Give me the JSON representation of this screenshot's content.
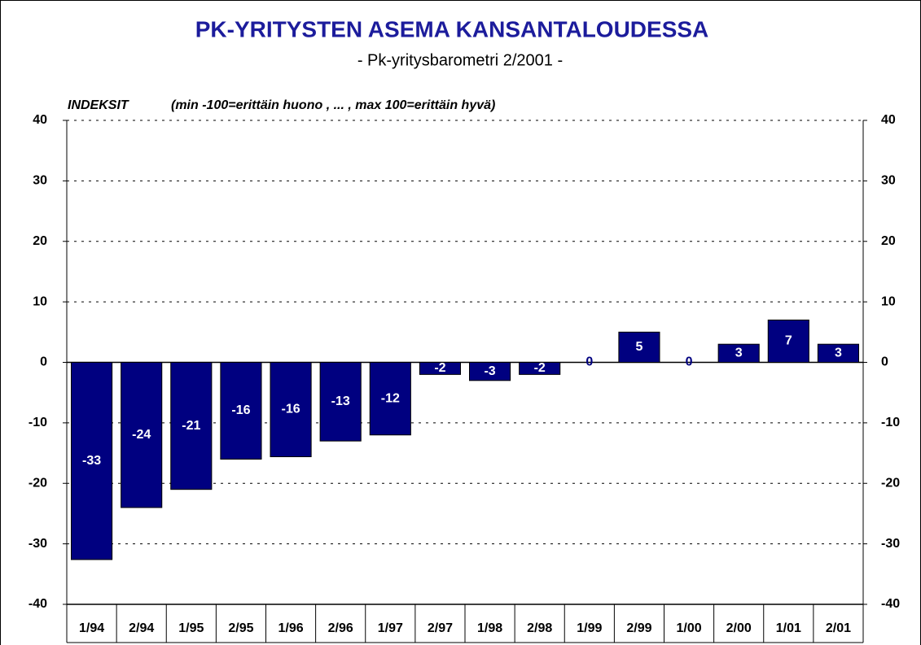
{
  "chart_data": {
    "type": "bar",
    "title": "PK-YRITYSTEN ASEMA KANSANTALOUDESSA",
    "subtitle": "- Pk-yritysbarometri 2/2001 -",
    "y_axis_label": "INDEKSIT",
    "y_axis_note": "(min -100=erittäin huono , ... , max 100=erittäin hyvä)",
    "categories": [
      "1/94",
      "2/94",
      "1/95",
      "2/95",
      "1/96",
      "2/96",
      "1/97",
      "2/97",
      "1/98",
      "2/98",
      "1/99",
      "2/99",
      "1/00",
      "2/00",
      "1/01",
      "2/01"
    ],
    "values": [
      -32.6,
      -24,
      -21,
      -16,
      -15.6,
      -13,
      -12,
      -2,
      -3,
      -2,
      0,
      5,
      0,
      3,
      7,
      3
    ],
    "value_labels": [
      "-33",
      "-24",
      "-21",
      "-16",
      "-16",
      "-13",
      "-12",
      "-2",
      "-3",
      "-2",
      "0",
      "5",
      "0",
      "3",
      "7",
      "3"
    ],
    "color": "#000080",
    "ylim": [
      -40,
      40
    ],
    "yticks": [
      -40,
      -30,
      -20,
      -10,
      0,
      10,
      20,
      30,
      40
    ],
    "grid": true
  }
}
